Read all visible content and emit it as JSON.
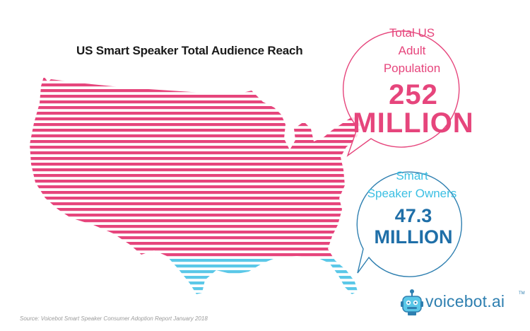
{
  "title": "US Smart Speaker Total Audience Reach",
  "source": "Source: Voicebot Smart Speaker Consumer Adoption Report January 2018",
  "logo": {
    "text": "voicebot.ai",
    "tm": "TM",
    "icon": "robot-head-icon"
  },
  "colors": {
    "population": "#e6457c",
    "owners": "#5bc8e8",
    "owners_value": "#1f6fa8",
    "bubble_owner_stroke": "#2e7fb0"
  },
  "chart_data": {
    "type": "map-stripes",
    "title": "US Smart Speaker Total Audience Reach",
    "series": [
      {
        "name": "Total US Adult Population",
        "label_lines": [
          "Total US",
          "Adult",
          "Population"
        ],
        "value": 252,
        "unit": "MILLION",
        "value_text": "252",
        "unit_text": "MILLION"
      },
      {
        "name": "Smart Speaker Owners",
        "label_lines": [
          "Smart",
          "Speaker Owners"
        ],
        "value": 47.3,
        "unit": "MILLION",
        "value_text": "47.3",
        "unit_text": "MILLION"
      }
    ]
  }
}
